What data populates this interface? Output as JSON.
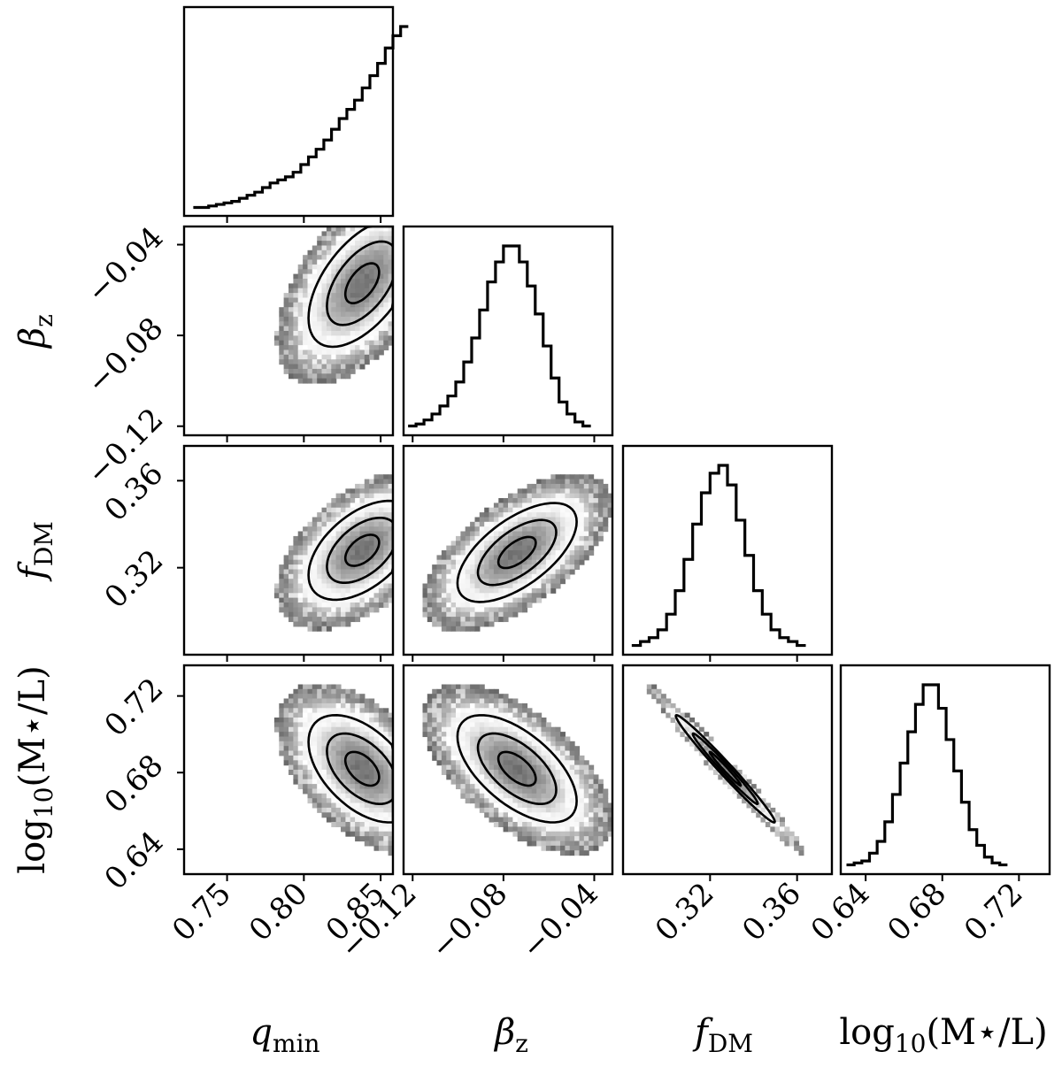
{
  "chart_data": {
    "type": "corner",
    "parameters": [
      {
        "key": "qmin",
        "label_main": "q",
        "label_sub": "min",
        "label_italic": true,
        "range": [
          0.722,
          0.858
        ],
        "ticks": [
          "0.75",
          "0.80",
          "0.85"
        ],
        "tick_values": [
          0.75,
          0.8,
          0.85
        ]
      },
      {
        "key": "betaz",
        "label_main": "β",
        "label_sub": "z",
        "label_italic": true,
        "range": [
          -0.124,
          -0.032
        ],
        "ticks": [
          "−0.12",
          "−0.08",
          "−0.04"
        ],
        "tick_values": [
          -0.12,
          -0.08,
          -0.04
        ]
      },
      {
        "key": "fdm",
        "label_main": "f",
        "label_sub": "DM",
        "label_italic": true,
        "range": [
          0.28,
          0.376
        ],
        "ticks": [
          "0.32",
          "0.36"
        ],
        "tick_values": [
          0.32,
          0.36
        ]
      },
      {
        "key": "logml",
        "label_main": "log",
        "label_sub": "10",
        "label_tail": "(M⋆/L)",
        "label_italic": false,
        "range": [
          0.627,
          0.736
        ],
        "ticks": [
          "0.64",
          "0.68",
          "0.72"
        ],
        "tick_values": [
          0.64,
          0.68,
          0.72
        ]
      }
    ],
    "histograms": {
      "qmin": {
        "x_start": 0.728,
        "x_step": 0.005,
        "values": [
          1,
          1,
          1.5,
          2,
          2.5,
          3,
          4,
          5,
          6,
          7.5,
          9,
          10,
          11,
          12.5,
          15,
          17.5,
          20,
          23,
          26.5,
          30,
          33,
          36,
          40,
          44,
          48,
          53,
          57,
          60
        ]
      },
      "betaz": {
        "x_start": -0.122,
        "x_step": 0.0035,
        "values": [
          1,
          1.5,
          2.5,
          4,
          6,
          8.5,
          12,
          17,
          23,
          30,
          37,
          42,
          46,
          46,
          42,
          36,
          29,
          21,
          13,
          7,
          4,
          2,
          1
        ]
      },
      "fdm": {
        "x_start": 0.284,
        "x_step": 0.004,
        "values": [
          1,
          2,
          3,
          5,
          9,
          15,
          23,
          32,
          40,
          45,
          47,
          42,
          33,
          24,
          15,
          9,
          5,
          3,
          2,
          1
        ]
      },
      "logml": {
        "x_start": 0.63,
        "x_step": 0.004,
        "values": [
          1,
          1.5,
          2,
          4,
          7,
          12,
          19,
          27,
          35,
          42,
          47,
          47,
          41,
          33,
          25,
          17,
          10,
          6,
          3,
          1.5,
          1
        ]
      }
    },
    "joint": [
      {
        "x": "qmin",
        "y": "betaz",
        "mean": [
          0.838,
          -0.057
        ],
        "sd": [
          0.02,
          0.016
        ],
        "rho": 0.55,
        "peak_on_edge": true
      },
      {
        "x": "qmin",
        "y": "fdm",
        "mean": [
          0.838,
          0.328
        ],
        "sd": [
          0.02,
          0.013
        ],
        "rho": 0.5,
        "peak_on_edge": true
      },
      {
        "x": "qmin",
        "y": "logml",
        "mean": [
          0.838,
          0.682
        ],
        "sd": [
          0.02,
          0.016
        ],
        "rho": -0.5,
        "peak_on_edge": true
      },
      {
        "x": "betaz",
        "y": "fdm",
        "mean": [
          -0.074,
          0.327
        ],
        "sd": [
          0.015,
          0.013
        ],
        "rho": 0.62
      },
      {
        "x": "betaz",
        "y": "logml",
        "mean": [
          -0.074,
          0.682
        ],
        "sd": [
          0.015,
          0.016
        ],
        "rho": -0.6
      },
      {
        "x": "fdm",
        "y": "logml",
        "mean": [
          0.327,
          0.682
        ],
        "sd": [
          0.013,
          0.016
        ],
        "rho": -0.985
      }
    ]
  }
}
